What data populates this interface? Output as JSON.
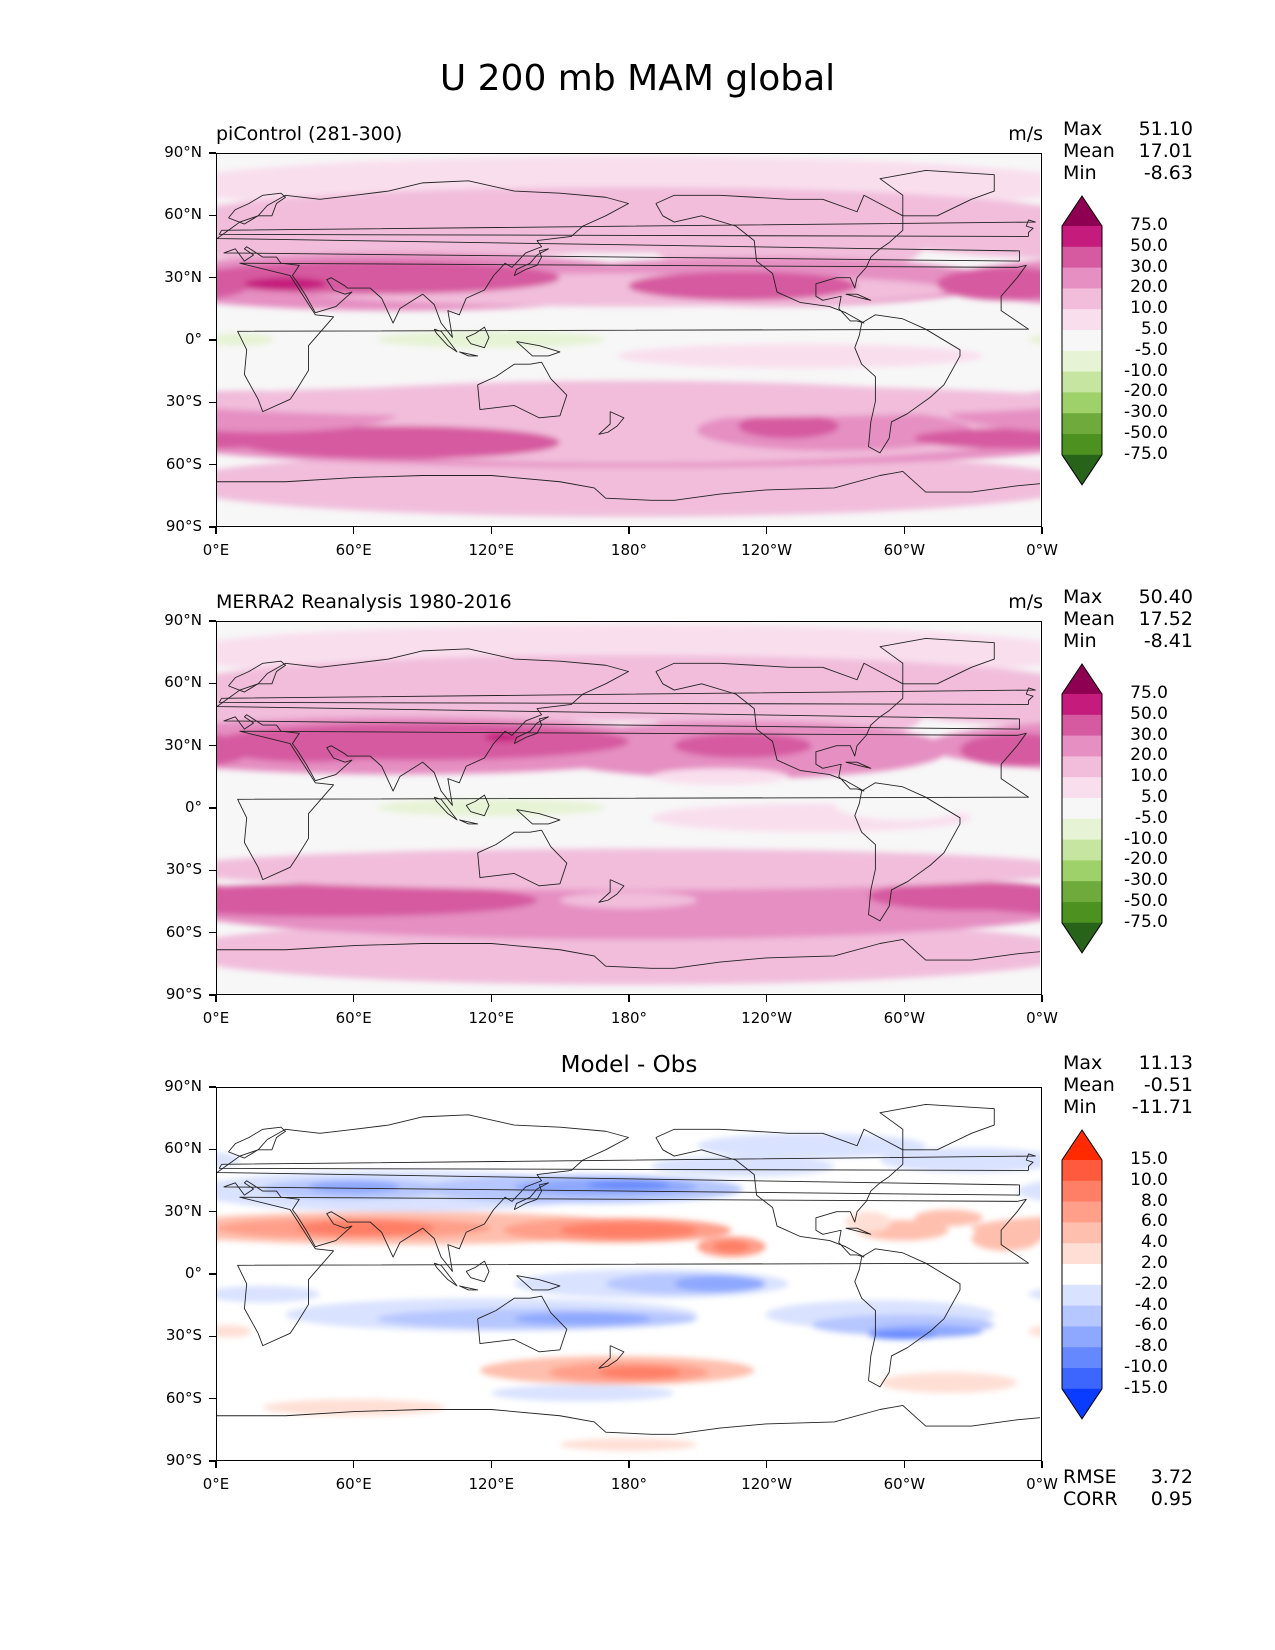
{
  "figure": {
    "title": "U 200 mb MAM global",
    "lat_ticks": [
      "90°N",
      "60°N",
      "30°N",
      "0°",
      "30°S",
      "60°S",
      "90°S"
    ],
    "lon_ticks": [
      "0°E",
      "60°E",
      "120°E",
      "180°",
      "120°W",
      "60°W",
      "0°W"
    ]
  },
  "panels": [
    {
      "title": "piControl (281-300)",
      "title_center": "",
      "units": "m/s",
      "stats": {
        "max_label": "Max",
        "max": "51.10",
        "mean_label": "Mean",
        "mean": "17.01",
        "min_label": "Min",
        "min": "-8.63"
      },
      "levels": [
        "75.0",
        "50.0",
        "30.0",
        "20.0",
        "10.0",
        "5.0",
        "-5.0",
        "-10.0",
        "-20.0",
        "-30.0",
        "-50.0",
        "-75.0"
      ],
      "colors": [
        "#8e0152",
        "#c51b7d",
        "#d65aa0",
        "#e58fc2",
        "#f1bddb",
        "#f9dfee",
        "#f7f7f7",
        "#e6f3d4",
        "#c5e5a0",
        "#9fd16a",
        "#6eab3c",
        "#4d9221",
        "#276419"
      ]
    },
    {
      "title": "MERRA2 Reanalysis 1980-2016",
      "title_center": "",
      "units": "m/s",
      "stats": {
        "max_label": "Max",
        "max": "50.40",
        "mean_label": "Mean",
        "mean": "17.52",
        "min_label": "Min",
        "min": "-8.41"
      },
      "levels": [
        "75.0",
        "50.0",
        "30.0",
        "20.0",
        "10.0",
        "5.0",
        "-5.0",
        "-10.0",
        "-20.0",
        "-30.0",
        "-50.0",
        "-75.0"
      ],
      "colors": [
        "#8e0152",
        "#c51b7d",
        "#d65aa0",
        "#e58fc2",
        "#f1bddb",
        "#f9dfee",
        "#f7f7f7",
        "#e6f3d4",
        "#c5e5a0",
        "#9fd16a",
        "#6eab3c",
        "#4d9221",
        "#276419"
      ]
    },
    {
      "title": "",
      "title_center": "Model - Obs",
      "units": "",
      "stats": {
        "max_label": "Max",
        "max": "11.13",
        "mean_label": "Mean",
        "mean": "-0.51",
        "min_label": "Min",
        "min": "-11.71"
      },
      "levels": [
        "15.0",
        "10.0",
        "8.0",
        "6.0",
        "4.0",
        "2.0",
        "-2.0",
        "-4.0",
        "-6.0",
        "-8.0",
        "-10.0",
        "-15.0"
      ],
      "colors": [
        "#ff2a00",
        "#ff5a3d",
        "#ff7f66",
        "#ff9f8a",
        "#ffbfae",
        "#ffdfd5",
        "#ffffff",
        "#d9e2ff",
        "#b6c6ff",
        "#8ea8ff",
        "#6688ff",
        "#3d66ff",
        "#0a3cff"
      ],
      "metrics": {
        "rmse_label": "RMSE",
        "rmse": "3.72",
        "corr_label": "CORR",
        "corr": "0.95"
      }
    }
  ]
}
